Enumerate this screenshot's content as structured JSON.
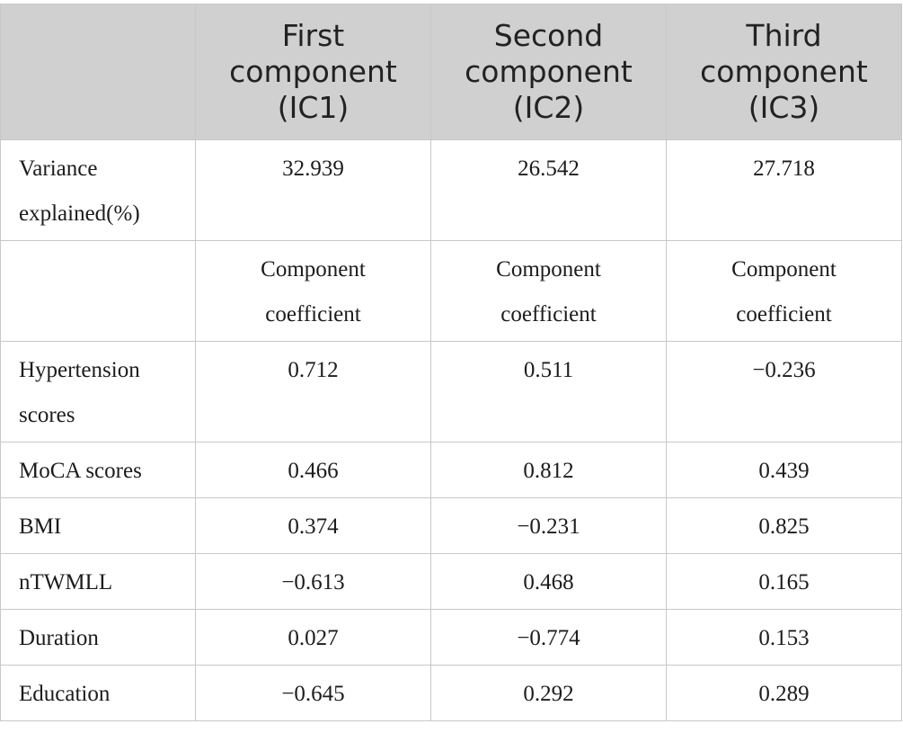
{
  "table": {
    "headers": [
      {
        "lines": []
      },
      {
        "lines": [
          "First",
          "component",
          "(IC1)"
        ]
      },
      {
        "lines": [
          "Second",
          "component",
          "(IC2)"
        ]
      },
      {
        "lines": [
          "Third",
          "component",
          "(IC3)"
        ]
      }
    ],
    "variance_row": {
      "label": [
        "Variance",
        "explained(%)"
      ],
      "values": [
        "32.939",
        "26.542",
        "27.718"
      ]
    },
    "coefficient_row": {
      "label": "",
      "values": [
        [
          "Component",
          "coefficient"
        ],
        [
          "Component",
          "coefficient"
        ],
        [
          "Component",
          "coefficient"
        ]
      ]
    },
    "hypertension_row": {
      "label": [
        "Hypertension",
        "scores"
      ],
      "values": [
        "0.712",
        "0.511",
        "−0.236"
      ]
    },
    "rows": [
      {
        "label": "MoCA scores",
        "values": [
          "0.466",
          "0.812",
          "0.439"
        ]
      },
      {
        "label": "BMI",
        "values": [
          "0.374",
          "−0.231",
          "0.825"
        ]
      },
      {
        "label": "nTWMLL",
        "values": [
          "−0.613",
          "0.468",
          "0.165"
        ]
      },
      {
        "label": "Duration",
        "values": [
          "0.027",
          "−0.774",
          "0.153"
        ]
      },
      {
        "label": "Education",
        "values": [
          "−0.645",
          "0.292",
          "0.289"
        ]
      }
    ]
  }
}
